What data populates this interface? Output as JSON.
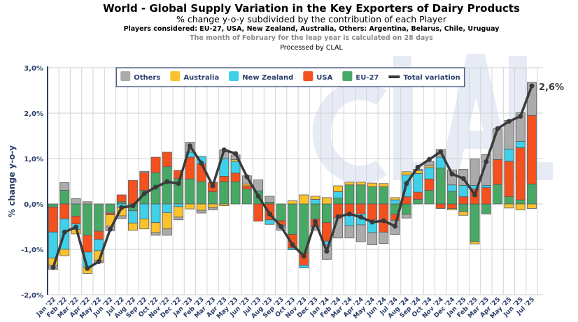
{
  "title": "World - Global Supply Variation in the Key Exporters of Dairy Products",
  "subtitle": "% change y-o-y subdivided by the contribution of each Player",
  "players_note": "Players considered: EU-27, USA, New Zealand, Australia, Others: Argentina, Belarus, Chile, Uruguay",
  "leap_note": "The month of February for the leap year is calculated on 28 days",
  "processed_by": "Processed by CLAL",
  "watermark": "CLAL",
  "chart_data": {
    "type": "bar",
    "stacked": true,
    "title": "World - Global Supply Variation in the Key Exporters of Dairy Products",
    "ylabel": "% change y-o-y",
    "ylim": [
      -2,
      3
    ],
    "yticks": [
      "-2,0%",
      "-1,0%",
      "0,0%",
      "1,0%",
      "2,0%",
      "3,0%"
    ],
    "legend_position": "top-center",
    "last_value_label": "2,6%",
    "categories": [
      "Jan '22",
      "Feb '22",
      "Mar '22",
      "Apr '22",
      "May '22",
      "Jun '22",
      "Jul '22",
      "Aug '22",
      "Sep '22",
      "Oct '22",
      "Nov '22",
      "Dec '22",
      "Jan '23",
      "Feb '23",
      "Mar '23",
      "Apr '23",
      "May '23",
      "Jun '23",
      "Jul '23",
      "Aug '23",
      "Sep '23",
      "Oct '23",
      "Nov '23",
      "Dec '23",
      "Jan '24",
      "Feb '24",
      "Mar '24",
      "Apr '24",
      "May '24",
      "Jun '24",
      "Jul '24",
      "Aug '24",
      "Sep '24",
      "Oct '24",
      "Nov '24",
      "Dec '24",
      "Jan '25",
      "Feb '25",
      "Mar '25",
      "Apr '25",
      "May '25",
      "Jun '25",
      "Jul '25"
    ],
    "series": [
      {
        "name": "EU-27",
        "color": "#48a865",
        "values": [
          -0.07,
          0.3,
          -0.27,
          -0.69,
          -0.6,
          -0.2,
          0.05,
          -0.15,
          0.3,
          0.69,
          0.82,
          0.56,
          0.55,
          0.49,
          0.27,
          0.49,
          0.49,
          0.33,
          0.29,
          0.04,
          -0.37,
          -0.67,
          -1.08,
          -0.33,
          -0.41,
          0.13,
          0.42,
          0.42,
          0.38,
          0.38,
          -0.23,
          -0.23,
          0.1,
          0.3,
          0.79,
          0.28,
          -0.17,
          -0.83,
          -0.22,
          0.43,
          0.16,
          0.09,
          0.44
        ]
      },
      {
        "name": "USA",
        "color": "#f4511e",
        "values": [
          -0.55,
          -0.33,
          -0.17,
          -0.37,
          -0.18,
          -0.04,
          0.15,
          0.52,
          0.39,
          0.34,
          0.32,
          0.18,
          0.48,
          0.39,
          0.21,
          0.12,
          0.19,
          0.07,
          -0.38,
          -0.35,
          -0.1,
          -0.3,
          -0.27,
          -0.17,
          -0.41,
          -0.31,
          -0.22,
          -0.22,
          -0.35,
          -0.62,
          -0.13,
          0.16,
          0.16,
          0.25,
          -0.1,
          -0.1,
          0.16,
          0.33,
          0.36,
          0.55,
          0.78,
          1.15,
          1.51
        ]
      },
      {
        "name": "New Zealand",
        "color": "#3fd0ea",
        "values": [
          -0.57,
          -0.67,
          -0.12,
          -0.33,
          -0.25,
          0,
          -0.07,
          -0.27,
          -0.33,
          -0.41,
          -0.19,
          -0.06,
          0.11,
          0.17,
          0,
          0.39,
          0.26,
          0,
          0,
          -0.1,
          -0.04,
          -0.04,
          -0.06,
          0.1,
          -0.09,
          0.14,
          -0.26,
          -0.24,
          -0.28,
          0,
          0.09,
          0.48,
          0.41,
          0.25,
          0.24,
          0.14,
          0.25,
          0.08,
          0.05,
          0,
          0.27,
          0.14,
          0
        ]
      },
      {
        "name": "Australia",
        "color": "#fbc22c",
        "values": [
          -0.16,
          -0.14,
          -0.1,
          -0.14,
          -0.22,
          -0.25,
          -0.19,
          -0.16,
          -0.22,
          -0.22,
          -0.36,
          -0.23,
          -0.11,
          -0.14,
          -0.08,
          -0.04,
          0.04,
          0.04,
          0,
          0,
          0,
          0.07,
          0.2,
          0.07,
          0.14,
          0.13,
          0.06,
          0.06,
          0.08,
          0.07,
          0.05,
          0.07,
          0.06,
          0.04,
          0,
          -0.03,
          -0.08,
          -0.05,
          0,
          0,
          -0.09,
          -0.13,
          -0.1
        ]
      },
      {
        "name": "Others",
        "color": "#ababab",
        "values": [
          -0.09,
          0.17,
          0.12,
          0.05,
          -0.05,
          -0.1,
          -0.06,
          0,
          0.03,
          -0.06,
          -0.14,
          -0.06,
          0.22,
          -0.06,
          -0.05,
          0.19,
          0.1,
          0.18,
          0.24,
          0.13,
          -0.07,
          0,
          0,
          -0.08,
          -0.31,
          -0.44,
          -0.27,
          -0.37,
          -0.27,
          -0.25,
          -0.31,
          -0.08,
          0.03,
          0.1,
          0.17,
          0.33,
          0.35,
          0.58,
          0.68,
          0.68,
          0.63,
          0.63,
          0.73
        ]
      }
    ],
    "total": {
      "name": "Total variation",
      "color": "#3a3a3a",
      "values": [
        -1.4,
        -0.62,
        -0.51,
        -1.42,
        -1.27,
        -0.56,
        -0.08,
        -0.04,
        0.23,
        0.37,
        0.49,
        0.45,
        1.28,
        0.9,
        0.4,
        1.19,
        1.11,
        0.6,
        0.17,
        -0.22,
        -0.5,
        -0.9,
        -1.15,
        -0.39,
        -1.04,
        -0.28,
        -0.22,
        -0.29,
        -0.4,
        -0.37,
        -0.49,
        0.45,
        0.81,
        0.98,
        1.15,
        0.66,
        0.56,
        0.2,
        0.93,
        1.66,
        1.82,
        1.93,
        2.6
      ]
    },
    "legend_order": [
      "Others",
      "Australia",
      "New Zealand",
      "USA",
      "EU-27",
      "Total variation"
    ]
  }
}
